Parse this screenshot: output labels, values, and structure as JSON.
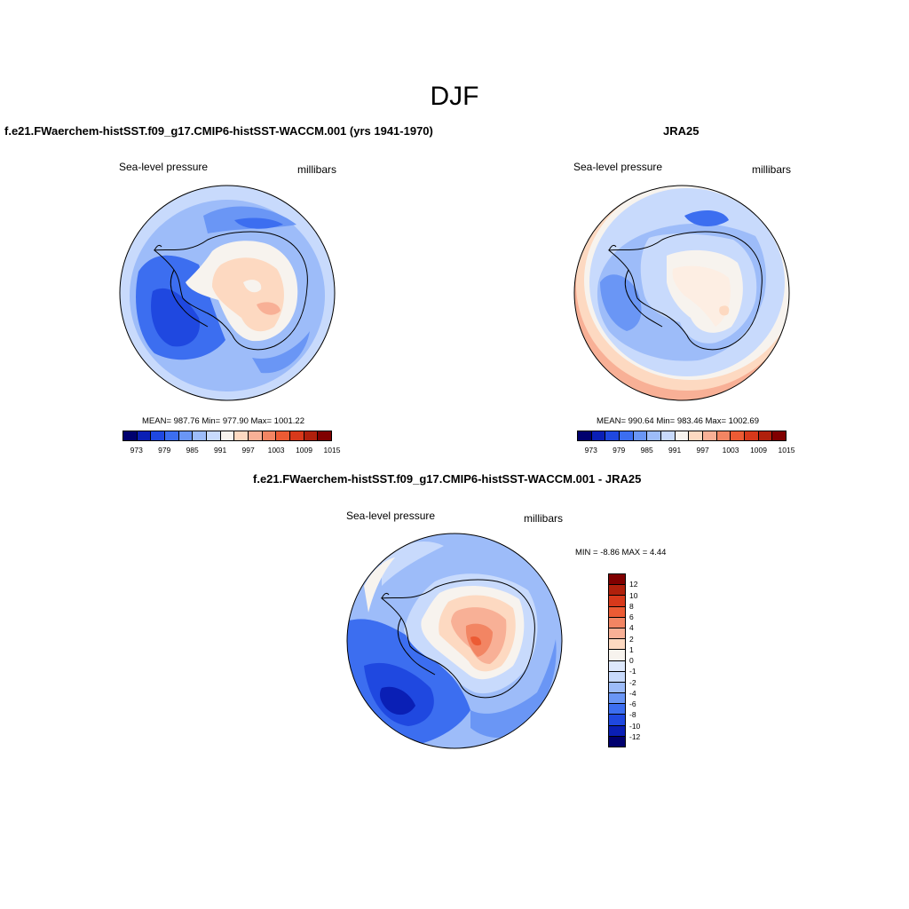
{
  "page": {
    "title": "DJF"
  },
  "palette_levels": [
    "#00006e",
    "#0a1fb5",
    "#1f48e0",
    "#3c6ef0",
    "#6a96f5",
    "#9dbcf9",
    "#c8dafc",
    "#f7f3ee",
    "#fdd9c1",
    "#f8b096",
    "#f28563",
    "#ec5b34",
    "#d8391b",
    "#b0200c",
    "#800000"
  ],
  "diff_levels": [
    "#800000",
    "#b0200c",
    "#d8391b",
    "#ec5b34",
    "#f28563",
    "#f8b096",
    "#fdd9c1",
    "#f7f3ee",
    "#dde8fc",
    "#c8dafc",
    "#9dbcf9",
    "#6a96f5",
    "#3c6ef0",
    "#1f48e0",
    "#0a1fb5",
    "#00006e"
  ],
  "panels": {
    "model": {
      "title": "f.e21.FWaerchem-histSST.f09_g17.CMIP6-histSST-WACCM.001 (yrs 1941-1970)",
      "left_label": "Sea-level pressure",
      "right_label": "millibars",
      "stats": "MEAN= 987.76  Min= 977.90  Max= 1001.22",
      "ticks": [
        "973",
        "979",
        "985",
        "991",
        "997",
        "1003",
        "1009",
        "1015"
      ]
    },
    "obs": {
      "title": "JRA25",
      "left_label": "Sea-level pressure",
      "right_label": "millibars",
      "stats": "MEAN= 990.64  Min= 983.46  Max= 1002.69",
      "ticks": [
        "973",
        "979",
        "985",
        "991",
        "997",
        "1003",
        "1009",
        "1015"
      ]
    },
    "diff": {
      "title": "f.e21.FWaerchem-histSST.f09_g17.CMIP6-histSST-WACCM.001 - JRA25",
      "left_label": "Sea-level pressure",
      "right_label": "millibars",
      "minmax": "MIN =  -8.86 MAX =   4.44",
      "ticks": [
        "12",
        "10",
        "8",
        "6",
        "4",
        "2",
        "1",
        "0",
        "-1",
        "-2",
        "-4",
        "-6",
        "-8",
        "-10",
        "-12"
      ]
    }
  }
}
